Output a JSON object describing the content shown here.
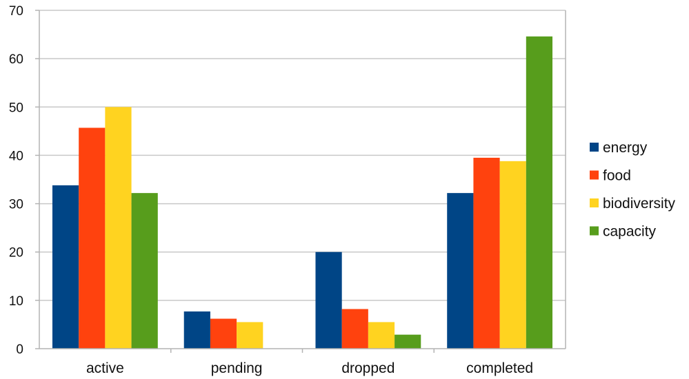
{
  "chart_data": {
    "type": "bar",
    "categories": [
      "active",
      "pending",
      "dropped",
      "completed"
    ],
    "series": [
      {
        "name": "energy",
        "color": "#004586",
        "values": [
          33.8,
          7.7,
          20.0,
          32.2
        ]
      },
      {
        "name": "food",
        "color": "#ff420e",
        "values": [
          45.7,
          6.2,
          8.2,
          39.5
        ]
      },
      {
        "name": "biodiversity",
        "color": "#ffd320",
        "values": [
          50.0,
          5.5,
          5.5,
          38.8
        ]
      },
      {
        "name": "capacity",
        "color": "#579d1c",
        "values": [
          32.2,
          0,
          2.9,
          64.6
        ]
      }
    ],
    "ylim": [
      0,
      70
    ],
    "yticks": [
      0,
      10,
      20,
      30,
      40,
      50,
      60,
      70
    ],
    "grid": true,
    "legend_position": "right"
  }
}
